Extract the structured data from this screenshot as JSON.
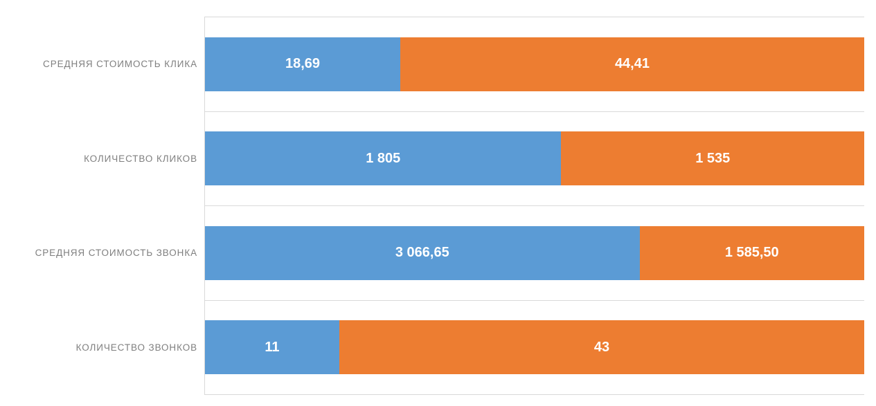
{
  "chart_data": {
    "type": "bar",
    "subtype": "100-percent-stacked",
    "orientation": "horizontal",
    "title": "",
    "xlabel": "",
    "ylabel": "",
    "categories": [
      "СРЕДНЯЯ СТОИМОСТЬ КЛИКА",
      "КОЛИЧЕСТВО КЛИКОВ",
      "СРЕДНЯЯ СТОИМОСТЬ ЗВОНКА",
      "КОЛИЧЕСТВО ЗВОНКОВ"
    ],
    "series": [
      {
        "name": "blue",
        "color": "#5B9BD5",
        "values": [
          18.69,
          1805,
          3066.65,
          11
        ],
        "value_labels": [
          "18,69",
          "1 805",
          "3 066,65",
          "11"
        ]
      },
      {
        "name": "orange",
        "color": "#ED7D31",
        "values": [
          44.41,
          1535,
          1585.5,
          43
        ],
        "value_labels": [
          "44,41",
          "1 535",
          "1 585,50",
          "43"
        ]
      }
    ],
    "legend": {
      "visible": false
    },
    "grid": {
      "visible": true,
      "color": "#D9D9D9"
    },
    "styles": {
      "category_label_color": "#7F7F7F",
      "value_label_color": "#FFFFFF",
      "background": "#FFFFFF"
    }
  }
}
